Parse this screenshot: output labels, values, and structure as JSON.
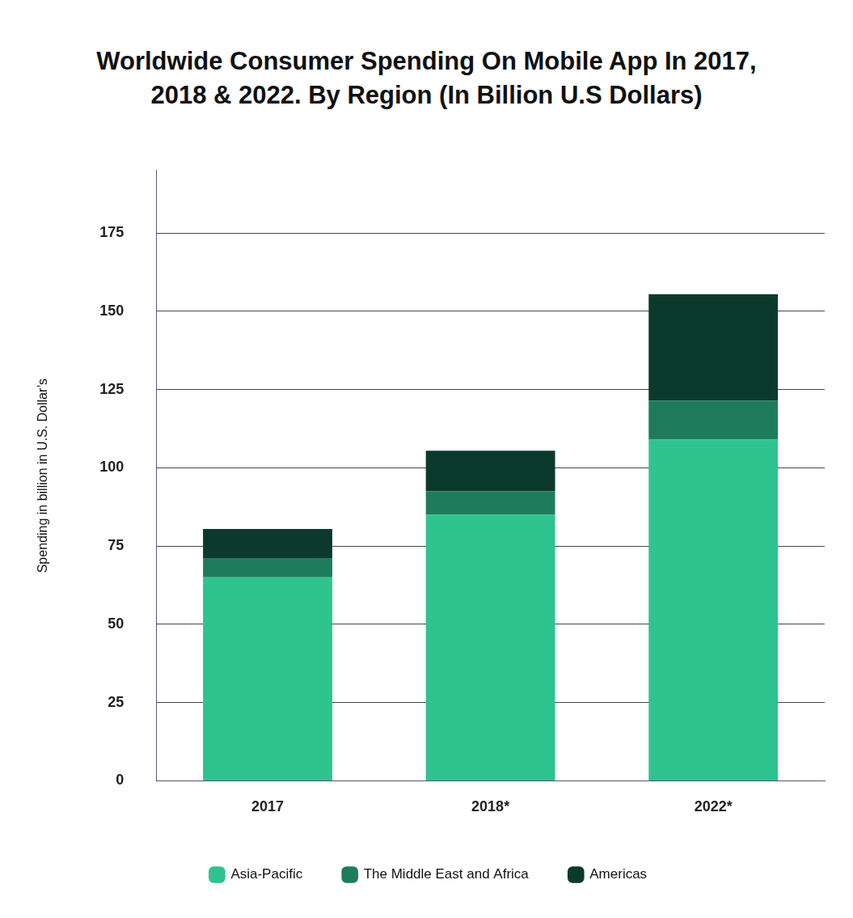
{
  "chart_data": {
    "type": "bar",
    "title": "Worldwide Consumer Spending On Mobile App In 2017, 2018 & 2022. By Region (In Billion U.S Dollars)",
    "y_label": "Spending in billion in U.S. Dollar’s",
    "categories": [
      "2017",
      "2018*",
      "2022*"
    ],
    "series": [
      {
        "name": "Asia-Pacific",
        "color": "#2ec38f",
        "values": [
          65,
          85,
          109
        ]
      },
      {
        "name": "The Middle East and Africa",
        "color": "#1e7c5c",
        "values": [
          6,
          7.5,
          12.5
        ]
      },
      {
        "name": "Americas",
        "color": "#0b3a2c",
        "values": [
          9.5,
          13,
          34
        ]
      }
    ],
    "stacked": true,
    "ylim": [
      0,
      195
    ],
    "yticks": [
      0,
      25,
      50,
      75,
      100,
      125,
      150,
      175
    ],
    "grid": true,
    "legend": "bottom"
  }
}
